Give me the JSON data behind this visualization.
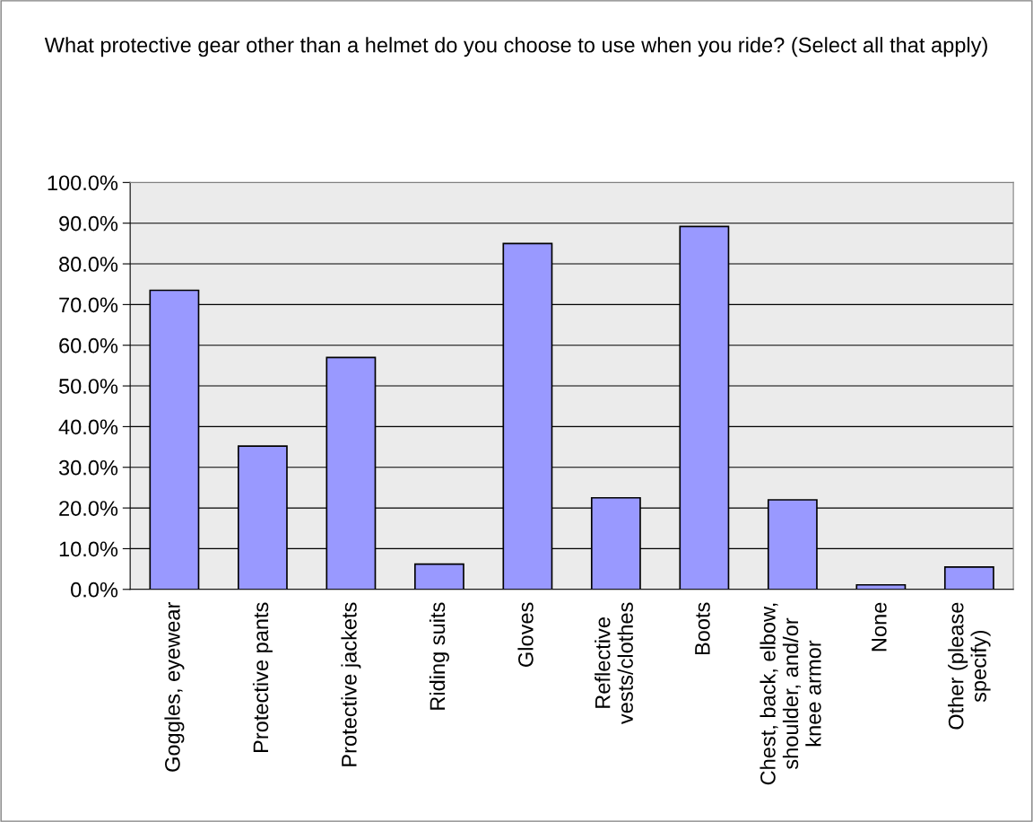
{
  "chart_data": {
    "type": "bar",
    "title": "What protective gear other than a helmet do you choose to use when you ride? (Select all that apply)",
    "categories": [
      "Goggles, eyewear",
      "Protective pants",
      "Protective jackets",
      "Riding suits",
      "Gloves",
      "Reflective\nvests/clothes",
      "Boots",
      "Chest, back, elbow,\nshoulder, and/or\nknee armor",
      "None",
      "Other (please\nspecify)"
    ],
    "values": [
      73.5,
      35.2,
      57,
      6.2,
      85,
      22.5,
      89.2,
      22,
      1.1,
      5.5
    ],
    "color": "#9999ff",
    "ylim": [
      0,
      100
    ],
    "yticks": [
      {
        "value": 0,
        "label": "0.0%"
      },
      {
        "value": 10,
        "label": "10.0%"
      },
      {
        "value": 20,
        "label": "20.0%"
      },
      {
        "value": 30,
        "label": "30.0%"
      },
      {
        "value": 40,
        "label": "40.0%"
      },
      {
        "value": 50,
        "label": "50.0%"
      },
      {
        "value": 60,
        "label": "60.0%"
      },
      {
        "value": 70,
        "label": "70.0%"
      },
      {
        "value": 80,
        "label": "80.0%"
      },
      {
        "value": 90,
        "label": "90.0%"
      },
      {
        "value": 100,
        "label": "100.0%"
      }
    ],
    "grid": "y"
  }
}
